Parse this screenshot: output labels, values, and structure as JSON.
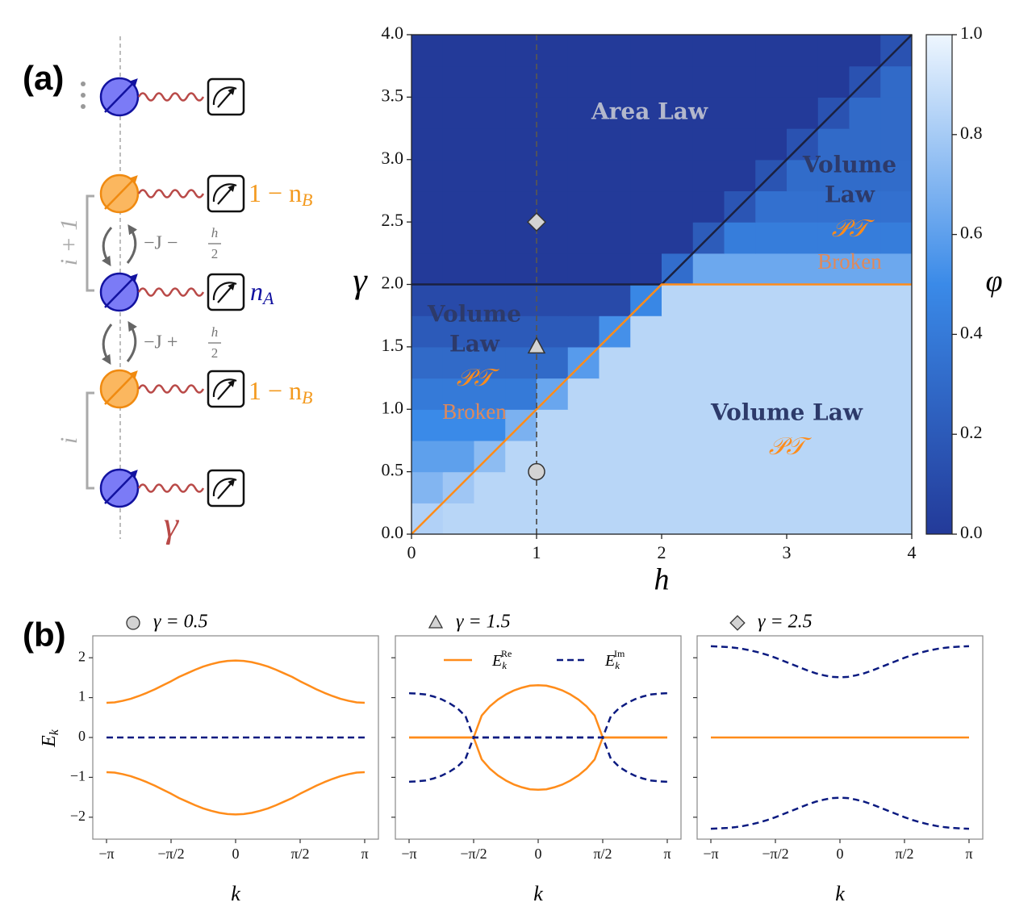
{
  "panel_labels": [
    "(a)",
    "(b)"
  ],
  "diagram": {
    "occupation_b": "1 − n",
    "occupation_b_sub": "B",
    "occupation_a": "n",
    "occupation_a_sub": "A",
    "hop_upper": {
      "text": "−J −",
      "num": "h",
      "den": "2"
    },
    "hop_lower": {
      "text": "−J +",
      "num": "h",
      "den": "2"
    },
    "site_upper": "i + 1",
    "site_lower": "i",
    "decay": "γ"
  },
  "chart_data": [
    {
      "type": "heatmap",
      "xlabel": "h",
      "ylabel": "γ",
      "xlim": [
        0,
        4
      ],
      "ylim": [
        0,
        4
      ],
      "xticks": [
        0,
        1,
        2,
        3,
        4
      ],
      "yticks": [
        {
          "value": 0,
          "label": "0.0"
        },
        {
          "value": 0.5,
          "label": "0.5"
        },
        {
          "value": 1,
          "label": "1.0"
        },
        {
          "value": 1.5,
          "label": "1.5"
        },
        {
          "value": 2,
          "label": "2.0"
        },
        {
          "value": 2.5,
          "label": "2.5"
        },
        {
          "value": 3,
          "label": "3.0"
        },
        {
          "value": 3.5,
          "label": "3.5"
        },
        {
          "value": 4,
          "label": "4.0"
        }
      ],
      "xbins": [
        0,
        0.25,
        0.5,
        0.75,
        1,
        1.25,
        1.5,
        1.75,
        2,
        2.25,
        2.5,
        2.75,
        3,
        3.25,
        3.5,
        3.75,
        4
      ],
      "ybins": [
        0,
        0.25,
        0.5,
        0.75,
        1,
        1.25,
        1.5,
        1.75,
        2,
        2.25,
        2.5,
        2.75,
        3,
        3.25,
        3.5,
        3.75,
        4
      ],
      "z": [
        [
          0.83,
          0.85,
          0.85,
          0.85,
          0.85,
          0.85,
          0.85,
          0.85,
          0.85,
          0.85,
          0.85,
          0.85,
          0.85,
          0.85,
          0.85,
          0.85
        ],
        [
          0.7,
          0.78,
          0.85,
          0.85,
          0.85,
          0.85,
          0.85,
          0.85,
          0.85,
          0.85,
          0.85,
          0.85,
          0.85,
          0.85,
          0.85,
          0.85
        ],
        [
          0.6,
          0.6,
          0.73,
          0.85,
          0.85,
          0.85,
          0.85,
          0.85,
          0.85,
          0.85,
          0.85,
          0.85,
          0.85,
          0.85,
          0.85,
          0.85
        ],
        [
          0.5,
          0.5,
          0.5,
          0.68,
          0.85,
          0.85,
          0.85,
          0.85,
          0.85,
          0.85,
          0.85,
          0.85,
          0.85,
          0.85,
          0.85,
          0.85
        ],
        [
          0.4,
          0.4,
          0.4,
          0.4,
          0.63,
          0.85,
          0.85,
          0.85,
          0.85,
          0.85,
          0.85,
          0.85,
          0.85,
          0.85,
          0.85,
          0.85
        ],
        [
          0.3,
          0.3,
          0.3,
          0.3,
          0.3,
          0.58,
          0.85,
          0.85,
          0.85,
          0.85,
          0.85,
          0.85,
          0.85,
          0.85,
          0.85,
          0.85
        ],
        [
          0.2,
          0.2,
          0.2,
          0.2,
          0.2,
          0.2,
          0.53,
          0.85,
          0.85,
          0.85,
          0.85,
          0.85,
          0.85,
          0.85,
          0.85,
          0.85
        ],
        [
          0.1,
          0.1,
          0.1,
          0.1,
          0.1,
          0.1,
          0.1,
          0.48,
          0.85,
          0.85,
          0.85,
          0.85,
          0.85,
          0.85,
          0.85,
          0.85
        ],
        [
          0,
          0,
          0,
          0,
          0,
          0,
          0,
          0,
          0.32,
          0.64,
          0.64,
          0.64,
          0.64,
          0.64,
          0.64,
          0.64
        ],
        [
          0,
          0,
          0,
          0,
          0,
          0,
          0,
          0,
          0,
          0.21,
          0.42,
          0.42,
          0.42,
          0.42,
          0.42,
          0.42
        ],
        [
          0,
          0,
          0,
          0,
          0,
          0,
          0,
          0,
          0,
          0,
          0.17,
          0.34,
          0.34,
          0.34,
          0.34,
          0.34
        ],
        [
          0,
          0,
          0,
          0,
          0,
          0,
          0,
          0,
          0,
          0,
          0,
          0.16,
          0.31,
          0.31,
          0.31,
          0.31
        ],
        [
          0,
          0,
          0,
          0,
          0,
          0,
          0,
          0,
          0,
          0,
          0,
          0,
          0.15,
          0.3,
          0.3,
          0.3
        ],
        [
          0,
          0,
          0,
          0,
          0,
          0,
          0,
          0,
          0,
          0,
          0,
          0,
          0,
          0.15,
          0.3,
          0.3
        ],
        [
          0,
          0,
          0,
          0,
          0,
          0,
          0,
          0,
          0,
          0,
          0,
          0,
          0,
          0,
          0.15,
          0.3
        ],
        [
          0,
          0,
          0,
          0,
          0,
          0,
          0,
          0,
          0,
          0,
          0,
          0,
          0,
          0,
          0,
          0.15
        ]
      ],
      "colormap": [
        "#233a99",
        "#3a8ae8",
        "#eef6fe"
      ],
      "clim": [
        0,
        1
      ],
      "colorbar_label": "φ",
      "colorbar_ticks": [
        {
          "value": 0,
          "label": "0.0"
        },
        {
          "value": 0.2,
          "label": "0.2"
        },
        {
          "value": 0.4,
          "label": "0.4"
        },
        {
          "value": 0.6,
          "label": "0.6"
        },
        {
          "value": 0.8,
          "label": "0.8"
        },
        {
          "value": 1,
          "label": "1.0"
        }
      ],
      "lines": [
        {
          "color": "#1b2140",
          "dash": false,
          "x": [
            0,
            2,
            4
          ],
          "y": [
            2,
            2,
            4
          ]
        },
        {
          "color": "#ff8c1a",
          "dash": false,
          "x": [
            0,
            2,
            4
          ],
          "y": [
            0,
            2,
            2
          ]
        },
        {
          "color": "#555555",
          "dash": true,
          "x": [
            1,
            1
          ],
          "y": [
            0,
            4
          ]
        }
      ],
      "marker_color": "#d3d3d3",
      "markers": [
        {
          "shape": "circle",
          "x": 1,
          "y": 0.5
        },
        {
          "shape": "triangle",
          "x": 1,
          "y": 1.5
        },
        {
          "shape": "diamond",
          "x": 1,
          "y": 2.5
        }
      ],
      "annotations": {
        "area_law": "Area Law",
        "volume": "Volume",
        "law": "Law",
        "pt": "𝒫𝒯",
        "broken": "Broken",
        "volume_law": "Volume Law"
      }
    },
    {
      "type": "line",
      "title": "γ = 0.5",
      "title_marker": "circle",
      "xlabel": "k",
      "ylabel": "E",
      "ylabel_sub": "k",
      "show_ytick_labels": true,
      "x": [
        -3.1416,
        -2.9452,
        -2.7489,
        -2.5525,
        -2.3562,
        -2.1598,
        -1.9635,
        -1.7671,
        -1.5708,
        -1.3744,
        -1.1781,
        -0.9817,
        -0.7854,
        -0.589,
        -0.3927,
        -0.1963,
        0,
        0.1963,
        0.3927,
        0.589,
        0.7854,
        0.9817,
        1.1781,
        1.3744,
        1.5708,
        1.7671,
        1.9635,
        2.1598,
        2.3562,
        2.5525,
        2.7489,
        2.9452,
        3.1416
      ],
      "xlim": [
        -3.4757,
        3.4757
      ],
      "ylim": [
        -2.55,
        2.55
      ],
      "xticks": [
        {
          "value": -3.1416,
          "label": "−π"
        },
        {
          "value": -1.5708,
          "label": "−π/2"
        },
        0,
        {
          "value": 1.5708,
          "label": "π/2"
        },
        {
          "value": 3.1416,
          "label": "π"
        }
      ],
      "yticks": [
        {
          "value": -2,
          "label": "−2"
        },
        {
          "value": -1,
          "label": "−1"
        },
        0,
        1,
        2
      ],
      "series": [
        {
          "color": "#ff8c1a",
          "dash": false,
          "values": [
            0.87,
            0.88,
            0.92,
            0.97,
            1.04,
            1.12,
            1.21,
            1.31,
            1.41,
            1.52,
            1.61,
            1.7,
            1.78,
            1.84,
            1.89,
            1.92,
            1.93,
            1.92,
            1.89,
            1.84,
            1.78,
            1.7,
            1.61,
            1.52,
            1.41,
            1.31,
            1.21,
            1.12,
            1.04,
            0.97,
            0.92,
            0.88,
            0.87
          ]
        },
        {
          "color": "#ff8c1a",
          "dash": false,
          "values": [
            -0.87,
            -0.88,
            -0.92,
            -0.97,
            -1.04,
            -1.12,
            -1.21,
            -1.31,
            -1.41,
            -1.52,
            -1.61,
            -1.7,
            -1.78,
            -1.84,
            -1.89,
            -1.92,
            -1.93,
            -1.92,
            -1.89,
            -1.84,
            -1.78,
            -1.7,
            -1.61,
            -1.52,
            -1.41,
            -1.31,
            -1.21,
            -1.12,
            -1.04,
            -0.97,
            -0.92,
            -0.88,
            -0.87
          ]
        },
        {
          "color": "#0b1a80",
          "dash": true,
          "values": [
            0,
            0,
            0,
            0,
            0,
            0,
            0,
            0,
            0,
            0,
            0,
            0,
            0,
            0,
            0,
            0,
            0,
            0,
            0,
            0,
            0,
            0,
            0,
            0,
            0,
            0,
            0,
            0,
            0,
            0,
            0,
            0,
            0
          ]
        }
      ]
    },
    {
      "type": "line",
      "title": "γ = 1.5",
      "title_marker": "triangle",
      "xlabel": "k",
      "show_ytick_labels": false,
      "x": [
        -3.1416,
        -2.9452,
        -2.7489,
        -2.5525,
        -2.3562,
        -2.1598,
        -1.9635,
        -1.7671,
        -1.5708,
        -1.3744,
        -1.1781,
        -0.9817,
        -0.7854,
        -0.589,
        -0.3927,
        -0.1963,
        0,
        0.1963,
        0.3927,
        0.589,
        0.7854,
        0.9817,
        1.1781,
        1.3744,
        1.5708,
        1.7671,
        1.9635,
        2.1598,
        2.3562,
        2.5525,
        2.7489,
        2.9452,
        3.1416
      ],
      "xlim": [
        -3.4757,
        3.4757
      ],
      "ylim": [
        -2.55,
        2.55
      ],
      "xticks": [
        {
          "value": -3.1416,
          "label": "−π"
        },
        {
          "value": -1.5708,
          "label": "−π/2"
        },
        0,
        {
          "value": 1.5708,
          "label": "π/2"
        },
        {
          "value": 3.1416,
          "label": "π"
        }
      ],
      "yticks": [
        -2,
        -1,
        0,
        1,
        2
      ],
      "legend": [
        {
          "symbol": "E",
          "sub": "k",
          "sup": "Re",
          "color": "#ff8c1a",
          "dash": false
        },
        {
          "symbol": "E",
          "sub": "k",
          "sup": "Im",
          "color": "#0b1a80",
          "dash": true
        }
      ],
      "series": [
        {
          "color": "#ff8c1a",
          "dash": false,
          "values": [
            0,
            0,
            0,
            0,
            0,
            0,
            0,
            0,
            0,
            0.55,
            0.78,
            0.95,
            1.08,
            1.18,
            1.25,
            1.3,
            1.31,
            1.3,
            1.25,
            1.18,
            1.08,
            0.95,
            0.78,
            0.55,
            0,
            0,
            0,
            0,
            0,
            0,
            0,
            0,
            0
          ]
        },
        {
          "color": "#ff8c1a",
          "dash": false,
          "values": [
            0,
            0,
            0,
            0,
            0,
            0,
            0,
            0,
            0,
            -0.55,
            -0.78,
            -0.95,
            -1.08,
            -1.18,
            -1.25,
            -1.3,
            -1.31,
            -1.3,
            -1.25,
            -1.18,
            -1.08,
            -0.95,
            -0.78,
            -0.55,
            0,
            0,
            0,
            0,
            0,
            0,
            0,
            0,
            0
          ]
        },
        {
          "color": "#0b1a80",
          "dash": true,
          "values": [
            1.11,
            1.1,
            1.08,
            1.03,
            0.96,
            0.86,
            0.73,
            0.53,
            0,
            0,
            0,
            0,
            0,
            0,
            0,
            0,
            0,
            0,
            0,
            0,
            0,
            0,
            0,
            0,
            0,
            0.53,
            0.73,
            0.86,
            0.96,
            1.03,
            1.08,
            1.1,
            1.11
          ]
        },
        {
          "color": "#0b1a80",
          "dash": true,
          "values": [
            -1.11,
            -1.1,
            -1.08,
            -1.03,
            -0.96,
            -0.86,
            -0.73,
            -0.53,
            0,
            0,
            0,
            0,
            0,
            0,
            0,
            0,
            0,
            0,
            0,
            0,
            0,
            0,
            0,
            0,
            0,
            -0.53,
            -0.73,
            -0.86,
            -0.96,
            -1.03,
            -1.08,
            -1.1,
            -1.11
          ]
        }
      ]
    },
    {
      "type": "line",
      "title": "γ = 2.5",
      "title_marker": "diamond",
      "xlabel": "k",
      "show_ytick_labels": false,
      "x": [
        -3.1416,
        -2.9452,
        -2.7489,
        -2.5525,
        -2.3562,
        -2.1598,
        -1.9635,
        -1.7671,
        -1.5708,
        -1.3744,
        -1.1781,
        -0.9817,
        -0.7854,
        -0.589,
        -0.3927,
        -0.1963,
        0,
        0.1963,
        0.3927,
        0.589,
        0.7854,
        0.9817,
        1.1781,
        1.3744,
        1.5708,
        1.7671,
        1.9635,
        2.1598,
        2.3562,
        2.5525,
        2.7489,
        2.9452,
        3.1416
      ],
      "xlim": [
        -3.4757,
        3.4757
      ],
      "ylim": [
        -2.55,
        2.55
      ],
      "xticks": [
        {
          "value": -3.1416,
          "label": "−π"
        },
        {
          "value": -1.5708,
          "label": "−π/2"
        },
        0,
        {
          "value": 1.5708,
          "label": "π/2"
        },
        {
          "value": 3.1416,
          "label": "π"
        }
      ],
      "yticks": [
        -2,
        -1,
        0,
        1,
        2
      ],
      "series": [
        {
          "color": "#ff8c1a",
          "dash": false,
          "values": [
            0,
            0,
            0,
            0,
            0,
            0,
            0,
            0,
            0,
            0,
            0,
            0,
            0,
            0,
            0,
            0,
            0,
            0,
            0,
            0,
            0,
            0,
            0,
            0,
            0,
            0,
            0,
            0,
            0,
            0,
            0,
            0,
            0
          ]
        },
        {
          "color": "#0b1a80",
          "dash": true,
          "values": [
            2.29,
            2.28,
            2.27,
            2.25,
            2.22,
            2.18,
            2.13,
            2.07,
            2.0,
            1.92,
            1.84,
            1.76,
            1.68,
            1.61,
            1.56,
            1.52,
            1.51,
            1.52,
            1.56,
            1.61,
            1.68,
            1.76,
            1.84,
            1.92,
            2.0,
            2.07,
            2.13,
            2.18,
            2.22,
            2.25,
            2.27,
            2.28,
            2.29
          ]
        },
        {
          "color": "#0b1a80",
          "dash": true,
          "values": [
            -2.29,
            -2.28,
            -2.27,
            -2.25,
            -2.22,
            -2.18,
            -2.13,
            -2.07,
            -2.0,
            -1.92,
            -1.84,
            -1.76,
            -1.68,
            -1.61,
            -1.56,
            -1.52,
            -1.51,
            -1.52,
            -1.56,
            -1.61,
            -1.68,
            -1.76,
            -1.84,
            -1.92,
            -2.0,
            -2.07,
            -2.13,
            -2.18,
            -2.22,
            -2.25,
            -2.27,
            -2.28,
            -2.29
          ]
        }
      ]
    }
  ]
}
